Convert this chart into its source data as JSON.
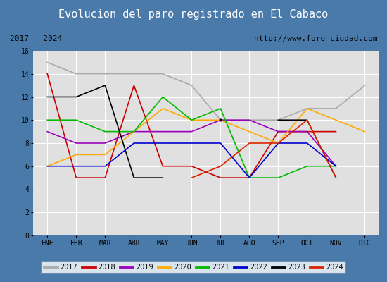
{
  "title": "Evolucion del paro registrado en El Cabaco",
  "subtitle_left": "2017 - 2024",
  "subtitle_right": "http://www.foro-ciudad.com",
  "months": [
    "ENE",
    "FEB",
    "MAR",
    "ABR",
    "MAY",
    "JUN",
    "JUL",
    "AGO",
    "SEP",
    "OCT",
    "NOV",
    "DIC"
  ],
  "ylim": [
    0,
    16
  ],
  "yticks": [
    0,
    2,
    4,
    6,
    8,
    10,
    12,
    14,
    16
  ],
  "year_order": [
    "2017",
    "2018",
    "2019",
    "2020",
    "2021",
    "2022",
    "2023",
    "2024"
  ],
  "series": {
    "2017": {
      "color": "#aaaaaa",
      "values": [
        15,
        14,
        14,
        14,
        14,
        13,
        10,
        10,
        10,
        11,
        11,
        13
      ]
    },
    "2018": {
      "color": "#cc0000",
      "values": [
        14,
        5,
        5,
        13,
        6,
        6,
        5,
        5,
        9,
        9,
        9,
        null
      ]
    },
    "2019": {
      "color": "#9900bb",
      "values": [
        9,
        8,
        8,
        9,
        9,
        9,
        10,
        10,
        9,
        9,
        6,
        null
      ]
    },
    "2020": {
      "color": "#ffaa00",
      "values": [
        6,
        7,
        7,
        9,
        11,
        10,
        10,
        9,
        8,
        11,
        10,
        9
      ]
    },
    "2021": {
      "color": "#00bb00",
      "values": [
        10,
        10,
        9,
        9,
        12,
        10,
        11,
        5,
        5,
        6,
        6,
        null
      ]
    },
    "2022": {
      "color": "#0000cc",
      "values": [
        6,
        6,
        6,
        8,
        8,
        8,
        8,
        5,
        8,
        8,
        6,
        null
      ]
    },
    "2023": {
      "color": "#000000",
      "values": [
        12,
        12,
        13,
        5,
        5,
        null,
        10,
        null,
        10,
        10,
        5,
        null
      ]
    },
    "2024": {
      "color": "#dd2200",
      "values": [
        null,
        null,
        null,
        null,
        null,
        5,
        6,
        8,
        8,
        10,
        5,
        null
      ]
    }
  },
  "title_bg": "#4a7aaa",
  "title_color": "#ffffff",
  "plot_bg": "#e0e0e0",
  "frame_color": "#4a7aaa",
  "white_bg": "#ffffff"
}
